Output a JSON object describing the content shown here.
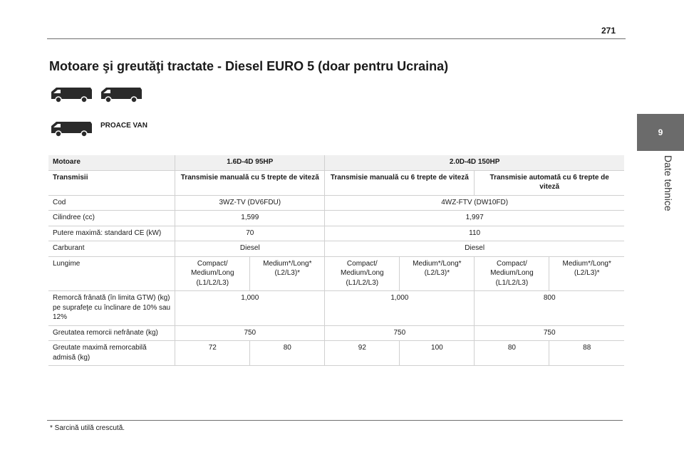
{
  "page_number": "271",
  "section": {
    "number": "9",
    "label": "Date tehnice"
  },
  "title": "Motoare şi greutăţi tractate - Diesel EURO 5 (doar pentru Ucraina)",
  "model": "PROACE VAN",
  "icons": [
    "van-icon",
    "van-icon",
    "long-van-icon"
  ],
  "table": {
    "motoare": {
      "label": "Motoare",
      "engine1": "1.6D-4D 95HP",
      "engine2": "2.0D-4D 150HP"
    },
    "transmisii": {
      "label": "Transmisii",
      "t1": "Transmisie manuală cu 5 trepte de viteză",
      "t2": "Transmisie manuală cu 6 trepte de viteză",
      "t3": "Transmisie automată cu 6 trepte de viteză"
    },
    "cod": {
      "label": "Cod",
      "v1": "3WZ-TV (DV6FDU)",
      "v2": "4WZ-FTV (DW10FD)"
    },
    "cilindree": {
      "label": "Cilindree (cc)",
      "v1": "1,599",
      "v2": "1,997"
    },
    "putere": {
      "label": "Putere maximă: standard CE (kW)",
      "v1": "70",
      "v2": "110"
    },
    "carburant": {
      "label": "Carburant",
      "v1": "Diesel",
      "v2": "Diesel"
    },
    "lungime": {
      "label": "Lungime",
      "cells": [
        "Compact/ Medium/Long (L1/L2/L3)",
        "Medium*/Long* (L2/L3)*",
        "Compact/ Medium/Long (L1/L2/L3)",
        "Medium*/Long* (L2/L3)*",
        "Compact/ Medium/Long (L1/L2/L3)",
        "Medium*/Long* (L2/L3)*"
      ]
    },
    "remorca_franata": {
      "label": "Remorcă frânată (în limita GTW) (kg) pe suprafeţe cu înclinare de 10% sau 12%",
      "v1": "1,000",
      "v2": "1,000",
      "v3": "800"
    },
    "remorca_nefranata": {
      "label": "Greutatea remorcii nefrânate (kg)",
      "v1": "750",
      "v2": "750",
      "v3": "750"
    },
    "greutate_maxima": {
      "label": "Greutate maximă remorcabilă admisă (kg)",
      "cells": [
        "72",
        "80",
        "92",
        "100",
        "80",
        "88"
      ]
    }
  },
  "footnote": "*  Sarcină utilă crescută."
}
